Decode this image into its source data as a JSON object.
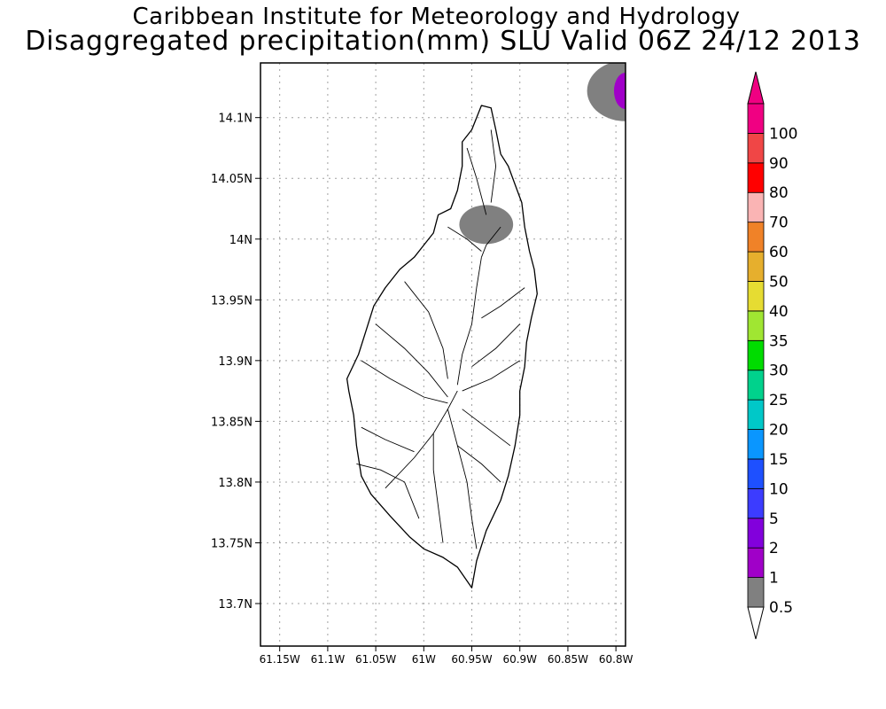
{
  "title": {
    "line1": "Caribbean Institute for Meteorology and Hydrology",
    "line2": "Disaggregated precipitation(mm) SLU Valid 06Z 24/12 2013"
  },
  "map": {
    "lon_range": [
      -61.17,
      -60.79
    ],
    "lat_range": [
      13.665,
      14.145
    ],
    "lat_ticks": [
      {
        "value": 14.1,
        "label": "14.1N"
      },
      {
        "value": 14.05,
        "label": "14.05N"
      },
      {
        "value": 14.0,
        "label": "14N"
      },
      {
        "value": 13.95,
        "label": "13.95N"
      },
      {
        "value": 13.9,
        "label": "13.9N"
      },
      {
        "value": 13.85,
        "label": "13.85N"
      },
      {
        "value": 13.8,
        "label": "13.8N"
      },
      {
        "value": 13.75,
        "label": "13.75N"
      },
      {
        "value": 13.7,
        "label": "13.7N"
      }
    ],
    "lon_ticks": [
      {
        "value": -61.15,
        "label": "61.15W"
      },
      {
        "value": -61.1,
        "label": "61.1W"
      },
      {
        "value": -61.05,
        "label": "61.05W"
      },
      {
        "value": -61.0,
        "label": "61W"
      },
      {
        "value": -60.95,
        "label": "60.95W"
      },
      {
        "value": -60.9,
        "label": "60.9W"
      },
      {
        "value": -60.85,
        "label": "60.85W"
      },
      {
        "value": -60.8,
        "label": "60.8W"
      }
    ],
    "grid": true,
    "island_outline": [
      [
        -60.94,
        14.11
      ],
      [
        -60.93,
        14.108
      ],
      [
        -60.925,
        14.09
      ],
      [
        -60.92,
        14.07
      ],
      [
        -60.912,
        14.06
      ],
      [
        -60.905,
        14.045
      ],
      [
        -60.898,
        14.03
      ],
      [
        -60.895,
        14.01
      ],
      [
        -60.89,
        13.99
      ],
      [
        -60.885,
        13.975
      ],
      [
        -60.882,
        13.955
      ],
      [
        -60.888,
        13.935
      ],
      [
        -60.893,
        13.915
      ],
      [
        -60.895,
        13.895
      ],
      [
        -60.9,
        13.875
      ],
      [
        -60.9,
        13.855
      ],
      [
        -60.905,
        13.83
      ],
      [
        -60.912,
        13.805
      ],
      [
        -60.92,
        13.785
      ],
      [
        -60.935,
        13.76
      ],
      [
        -60.945,
        13.735
      ],
      [
        -60.95,
        13.713
      ],
      [
        -60.965,
        13.73
      ],
      [
        -60.98,
        13.738
      ],
      [
        -61.0,
        13.745
      ],
      [
        -61.015,
        13.755
      ],
      [
        -61.035,
        13.772
      ],
      [
        -61.055,
        13.79
      ],
      [
        -61.065,
        13.805
      ],
      [
        -61.07,
        13.83
      ],
      [
        -61.073,
        13.855
      ],
      [
        -61.078,
        13.875
      ],
      [
        -61.08,
        13.885
      ],
      [
        -61.068,
        13.905
      ],
      [
        -61.06,
        13.925
      ],
      [
        -61.052,
        13.945
      ],
      [
        -61.04,
        13.96
      ],
      [
        -61.025,
        13.975
      ],
      [
        -61.01,
        13.985
      ],
      [
        -61.0,
        13.995
      ],
      [
        -60.99,
        14.005
      ],
      [
        -60.985,
        14.02
      ],
      [
        -60.972,
        14.025
      ],
      [
        -60.965,
        14.04
      ],
      [
        -60.96,
        14.06
      ],
      [
        -60.96,
        14.08
      ],
      [
        -60.95,
        14.09
      ]
    ],
    "rivers": [
      [
        [
          -60.955,
          14.075
        ],
        [
          -60.945,
          14.05
        ],
        [
          -60.935,
          14.02
        ]
      ],
      [
        [
          -60.93,
          14.09
        ],
        [
          -60.925,
          14.06
        ],
        [
          -60.93,
          14.03
        ]
      ],
      [
        [
          -60.975,
          14.01
        ],
        [
          -60.955,
          14.0
        ],
        [
          -60.94,
          13.99
        ]
      ],
      [
        [
          -60.92,
          14.01
        ],
        [
          -60.935,
          13.995
        ],
        [
          -60.94,
          13.985
        ]
      ],
      [
        [
          -60.94,
          13.985
        ],
        [
          -60.945,
          13.96
        ],
        [
          -60.95,
          13.93
        ],
        [
          -60.96,
          13.905
        ],
        [
          -60.965,
          13.88
        ]
      ],
      [
        [
          -61.02,
          13.965
        ],
        [
          -60.995,
          13.94
        ],
        [
          -60.98,
          13.91
        ],
        [
          -60.975,
          13.885
        ]
      ],
      [
        [
          -61.05,
          13.93
        ],
        [
          -61.02,
          13.91
        ],
        [
          -60.995,
          13.89
        ],
        [
          -60.975,
          13.87
        ]
      ],
      [
        [
          -61.065,
          13.9
        ],
        [
          -61.035,
          13.885
        ],
        [
          -61.0,
          13.87
        ],
        [
          -60.975,
          13.865
        ]
      ],
      [
        [
          -60.895,
          13.96
        ],
        [
          -60.92,
          13.945
        ],
        [
          -60.94,
          13.935
        ]
      ],
      [
        [
          -60.9,
          13.93
        ],
        [
          -60.925,
          13.91
        ],
        [
          -60.95,
          13.895
        ]
      ],
      [
        [
          -60.9,
          13.9
        ],
        [
          -60.93,
          13.885
        ],
        [
          -60.96,
          13.875
        ]
      ],
      [
        [
          -60.965,
          13.875
        ],
        [
          -60.975,
          13.86
        ],
        [
          -60.99,
          13.84
        ],
        [
          -61.01,
          13.82
        ],
        [
          -61.04,
          13.795
        ]
      ],
      [
        [
          -60.99,
          13.84
        ],
        [
          -60.99,
          13.81
        ],
        [
          -60.985,
          13.78
        ],
        [
          -60.98,
          13.75
        ]
      ],
      [
        [
          -60.975,
          13.86
        ],
        [
          -60.965,
          13.83
        ],
        [
          -60.955,
          13.8
        ],
        [
          -60.95,
          13.77
        ],
        [
          -60.945,
          13.745
        ]
      ],
      [
        [
          -60.965,
          13.83
        ],
        [
          -60.94,
          13.815
        ],
        [
          -60.92,
          13.8
        ]
      ],
      [
        [
          -60.96,
          13.86
        ],
        [
          -60.935,
          13.845
        ],
        [
          -60.91,
          13.83
        ]
      ],
      [
        [
          -61.065,
          13.845
        ],
        [
          -61.04,
          13.835
        ],
        [
          -61.01,
          13.825
        ]
      ],
      [
        [
          -61.07,
          13.815
        ],
        [
          -61.045,
          13.81
        ],
        [
          -61.02,
          13.8
        ],
        [
          -61.005,
          13.77
        ]
      ]
    ]
  },
  "precip_areas": [
    {
      "level": "0.5-1",
      "color": "#808080",
      "center": [
        -60.935,
        14.012
      ],
      "radius": [
        0.028,
        0.016
      ]
    },
    {
      "level": "0.5-1",
      "color": "#808080",
      "center": [
        -60.79,
        14.122
      ],
      "radius": [
        0.04,
        0.025
      ]
    },
    {
      "level": "1-2",
      "color": "#a000c8",
      "center": [
        -60.79,
        14.122
      ],
      "radius": [
        0.012,
        0.015
      ]
    }
  ],
  "colorbar": {
    "labels": [
      "0.5",
      "1",
      "2",
      "5",
      "10",
      "15",
      "20",
      "25",
      "30",
      "35",
      "40",
      "50",
      "60",
      "70",
      "80",
      "90",
      "100"
    ],
    "colors": [
      "#808080",
      "#a000c8",
      "#8200dc",
      "#3c3cff",
      "#1e50ff",
      "#0a96ff",
      "#00c8c8",
      "#00d28c",
      "#00dc00",
      "#a0e632",
      "#e6dc32",
      "#e6af2d",
      "#f08228",
      "#fab4b4",
      "#ff0000",
      "#f04646",
      "#f00082"
    ],
    "below_color": "#ffffff",
    "above_color": "#f00082"
  }
}
